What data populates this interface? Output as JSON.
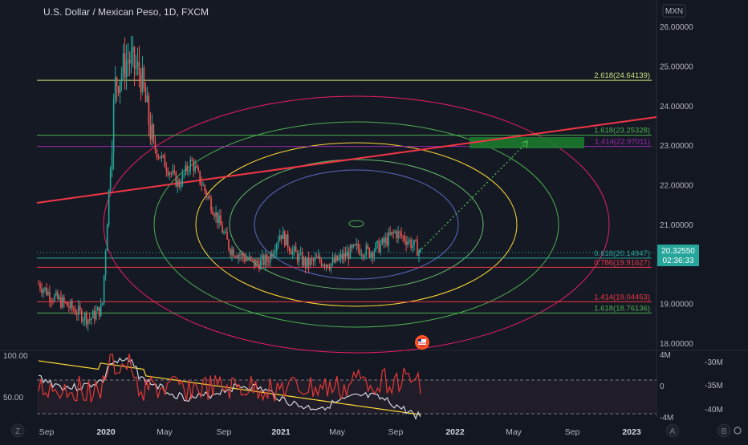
{
  "header": {
    "symbol_title": "U.S. Dollar / Mexican Peso, 1D, FXCM",
    "currency_badge": "MXN"
  },
  "price_axis": {
    "ticks": [
      "26.00000",
      "25.00000",
      "24.00000",
      "23.00000",
      "22.00000",
      "21.00000",
      "19.00000",
      "18.00000"
    ],
    "tick_values": [
      26,
      25,
      24,
      23,
      22,
      21,
      19,
      18
    ],
    "last_price": "20.32550",
    "countdown": "02:36:33",
    "last_price_color": "#26a69a"
  },
  "time_axis": {
    "labels": [
      "Sep",
      "2020",
      "May",
      "Sep",
      "2021",
      "May",
      "Sep",
      "2022",
      "May",
      "Sep",
      "2023"
    ]
  },
  "fib_levels": [
    {
      "label": "2.618(24.64139)",
      "value": 24.64139,
      "color": "#c9e27a"
    },
    {
      "label": "1.618(23.25328)",
      "value": 23.25328,
      "color": "#4caf50"
    },
    {
      "label": "1.414(22.97011)",
      "value": 22.97011,
      "color": "#9c27b0"
    },
    {
      "label": "0.618(20.14947)",
      "value": 20.14947,
      "color": "#26a69a"
    },
    {
      "label": "0.786(19.91627)",
      "value": 19.91627,
      "color": "#f23645"
    },
    {
      "label": "1.414(19.04453)",
      "value": 19.04453,
      "color": "#f23645"
    },
    {
      "label": "1.618(18.76136)",
      "value": 18.76136,
      "color": "#4caf50"
    }
  ],
  "chart_data": {
    "type": "line",
    "title": "U.S. Dollar / Mexican Peso, 1D, FXCM",
    "y_range": [
      17.8,
      26.2
    ],
    "series": [
      {
        "name": "USD/MXN",
        "values": [
          19.5,
          19.2,
          19.0,
          18.8,
          18.6,
          18.9,
          24.5,
          25.2,
          24.8,
          23.0,
          22.5,
          22.0,
          22.6,
          21.9,
          21.2,
          20.4,
          20.2,
          20.0,
          20.1,
          20.8,
          20.3,
          20.0,
          20.1,
          20.0,
          20.2,
          20.4,
          20.3,
          20.5,
          20.8,
          20.6,
          20.3
        ]
      }
    ],
    "oscillator": {
      "left_ticks": [
        "100.00",
        "50.00"
      ],
      "right_ticks": [
        "4M",
        "0",
        "-4M"
      ],
      "far_right_ticks": [
        "-30M",
        "-35M",
        "-40M"
      ]
    }
  },
  "icons": {
    "flag_marker": "us-flag-icon",
    "corner_left": "Z",
    "corner_right_a": "A",
    "corner_right_b": "B",
    "gear": "gear-icon"
  }
}
